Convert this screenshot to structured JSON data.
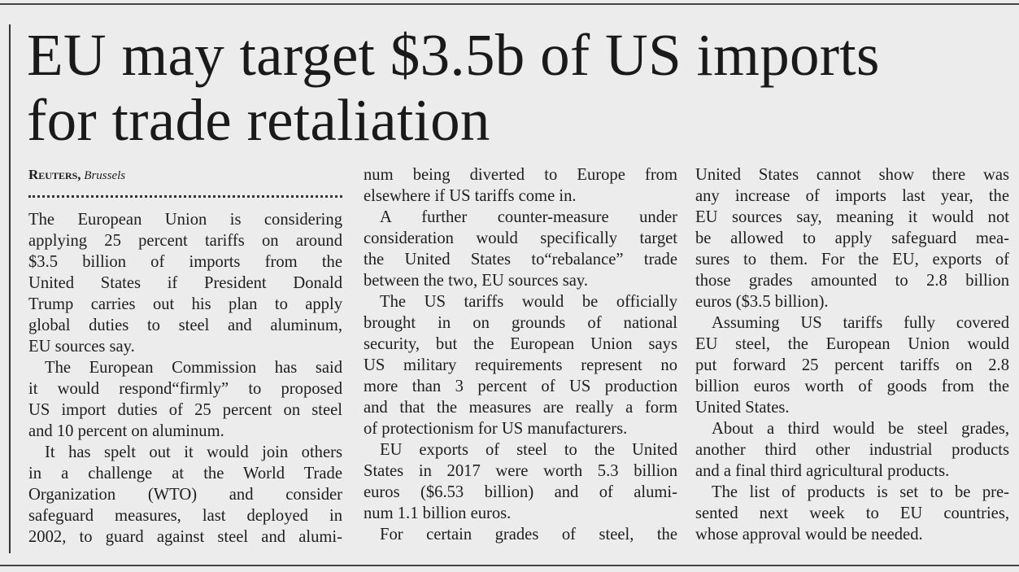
{
  "headline": {
    "line1": "EU may target $3.5b of US imports",
    "line2": "for trade retaliation"
  },
  "byline": {
    "agency": "Reuters,",
    "place": "Brussels"
  },
  "columns": [
    [
      [
        "The European Union is considering",
        "applying 25 percent tariffs on around",
        "$3.5 billion of imports from the",
        "United States if President Donald",
        "Trump carries out his plan to apply",
        "global duties to steel and aluminum,",
        "EU sources say."
      ],
      [
        "The European Commission has said",
        "it would respond“firmly” to proposed",
        "US import duties of 25 percent on steel",
        "and 10 percent on aluminum."
      ],
      [
        "It has spelt out it would join others",
        "in a challenge at the World Trade",
        "Organization (WTO) and consider",
        "safeguard measures, last deployed in",
        "2002, to guard against steel and alumi-"
      ]
    ],
    [
      [
        "num being diverted to Europe from",
        "elsewhere if US tariffs come in."
      ],
      [
        "A further counter-measure under",
        "consideration would specifically target",
        "the United States to“rebalance” trade",
        "between the two, EU sources say."
      ],
      [
        "The US tariffs would be officially",
        "brought in on grounds of national",
        "security, but the European Union says",
        "US military requirements represent no",
        "more than 3 percent of US production",
        "and that the measures are really a form",
        "of protectionism for US manufacturers."
      ],
      [
        "EU exports of steel to the United",
        "States in 2017 were worth 5.3 billion",
        "euros ($6.53 billion) and of alumi-",
        "num 1.1 billion euros."
      ],
      [
        "For certain grades of steel, the"
      ]
    ],
    [
      [
        "United States cannot show there was",
        "any increase of imports last year, the",
        "EU sources say, meaning it would not",
        "be allowed to apply safeguard mea-",
        "sures to them. For the EU, exports of",
        "those grades amounted to 2.8 billion",
        "euros ($3.5 billion)."
      ],
      [
        "Assuming US tariffs fully covered",
        "EU steel, the European Union would",
        "put forward 25 percent tariffs on 2.8",
        "billion euros worth of goods from the",
        "United States."
      ],
      [
        "About a third would be steel grades,",
        "another third other industrial products",
        "and a final third agricultural products."
      ],
      [
        "The list of products is set to be pre-",
        "sented next week to EU countries,",
        "whose approval would be needed."
      ]
    ]
  ]
}
